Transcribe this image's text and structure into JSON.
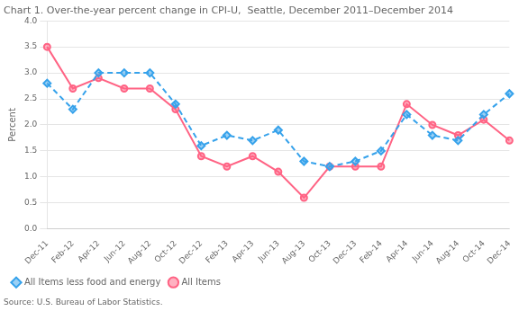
{
  "chart_data": {
    "type": "line",
    "title": "Chart 1. Over-the-year percent change in CPI-U,  Seattle, December 2011–December 2014",
    "ylabel": "Percent",
    "source": "Source: U.S. Bureau of Labor Statistics.",
    "categories": [
      "Dec-11",
      "Feb-12",
      "Apr-12",
      "Jun-12",
      "Aug-12",
      "Oct-12",
      "Dec-12",
      "Feb-13",
      "Apr-13",
      "Jun-13",
      "Aug-13",
      "Oct-13",
      "Dec-13",
      "Feb-14",
      "Apr-14",
      "Jun-14",
      "Aug-14",
      "Oct-14",
      "Dec-14"
    ],
    "series": [
      {
        "name": "All Items less food and energy",
        "line_style": "dashed",
        "marker": "diamond",
        "values": [
          2.8,
          2.3,
          3.0,
          3.0,
          3.0,
          2.4,
          1.6,
          1.8,
          1.7,
          1.9,
          1.3,
          1.2,
          1.3,
          1.5,
          2.2,
          1.8,
          1.7,
          2.2,
          2.6
        ]
      },
      {
        "name": "All Items",
        "line_style": "solid",
        "marker": "circle",
        "values": [
          3.5,
          2.7,
          2.9,
          2.7,
          2.7,
          2.3,
          1.4,
          1.2,
          1.4,
          1.1,
          0.6,
          1.2,
          1.2,
          1.2,
          2.4,
          2.0,
          1.8,
          2.1,
          1.7
        ]
      }
    ],
    "ylim": [
      0.0,
      4.0
    ],
    "yticks": [
      {
        "value": 0,
        "label": "0.0"
      },
      0.5,
      {
        "value": 1,
        "label": "1.0"
      },
      1.5,
      {
        "value": 2,
        "label": "2.0"
      },
      2.5,
      {
        "value": 3,
        "label": "3.0"
      },
      3.5,
      {
        "value": 4,
        "label": "4.0"
      }
    ],
    "grid": true,
    "legend": "lower left"
  }
}
